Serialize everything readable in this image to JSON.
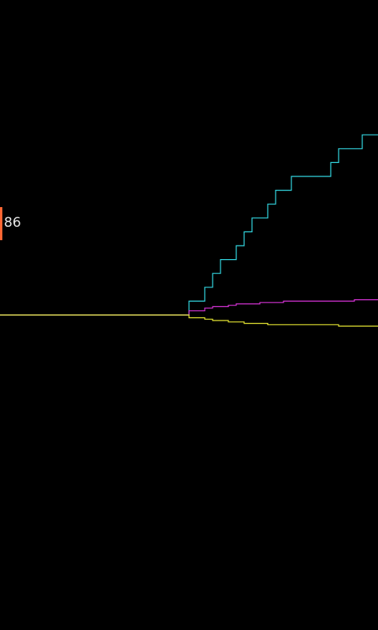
{
  "readout": {
    "value": "86"
  },
  "colors": {
    "background": "#000000",
    "marker": "#ff6633",
    "label": "#e6e6e6",
    "trace_up": "#33d6e0",
    "trace_mid": "#d633d6",
    "trace_low": "#e6e633"
  },
  "chart_data": {
    "type": "line",
    "series": [
      {
        "color": "#33d6e0",
        "values": [
          0,
          0,
          0,
          0,
          0,
          0,
          0,
          0,
          0,
          0,
          0,
          0,
          0,
          0,
          0,
          0,
          0,
          0,
          0,
          0,
          0,
          0,
          0,
          0,
          1,
          1,
          2,
          3,
          4,
          4,
          5,
          6,
          7,
          7,
          8,
          9,
          9,
          10,
          10,
          10,
          10,
          10,
          11,
          12,
          12,
          12,
          13,
          13
        ]
      },
      {
        "color": "#d633d6",
        "values": [
          0,
          0,
          0,
          0,
          0,
          0,
          0,
          0,
          0,
          0,
          0,
          0,
          0,
          0,
          0,
          0,
          0,
          0,
          0,
          0,
          0,
          0,
          0,
          0,
          0.3,
          0.3,
          0.5,
          0.6,
          0.6,
          0.7,
          0.8,
          0.8,
          0.8,
          0.9,
          0.9,
          0.9,
          1,
          1,
          1,
          1,
          1,
          1,
          1,
          1,
          1,
          1.1,
          1.1,
          1.1
        ]
      },
      {
        "color": "#e6e633",
        "values": [
          0,
          0,
          0,
          0,
          0,
          0,
          0,
          0,
          0,
          0,
          0,
          0,
          0,
          0,
          0,
          0,
          0,
          0,
          0,
          0,
          0,
          0,
          0,
          0,
          -0.2,
          -0.2,
          -0.3,
          -0.4,
          -0.4,
          -0.5,
          -0.5,
          -0.6,
          -0.6,
          -0.6,
          -0.7,
          -0.7,
          -0.7,
          -0.7,
          -0.7,
          -0.7,
          -0.7,
          -0.7,
          -0.7,
          -0.8,
          -0.8,
          -0.8,
          -0.8,
          -0.8
        ]
      }
    ]
  }
}
